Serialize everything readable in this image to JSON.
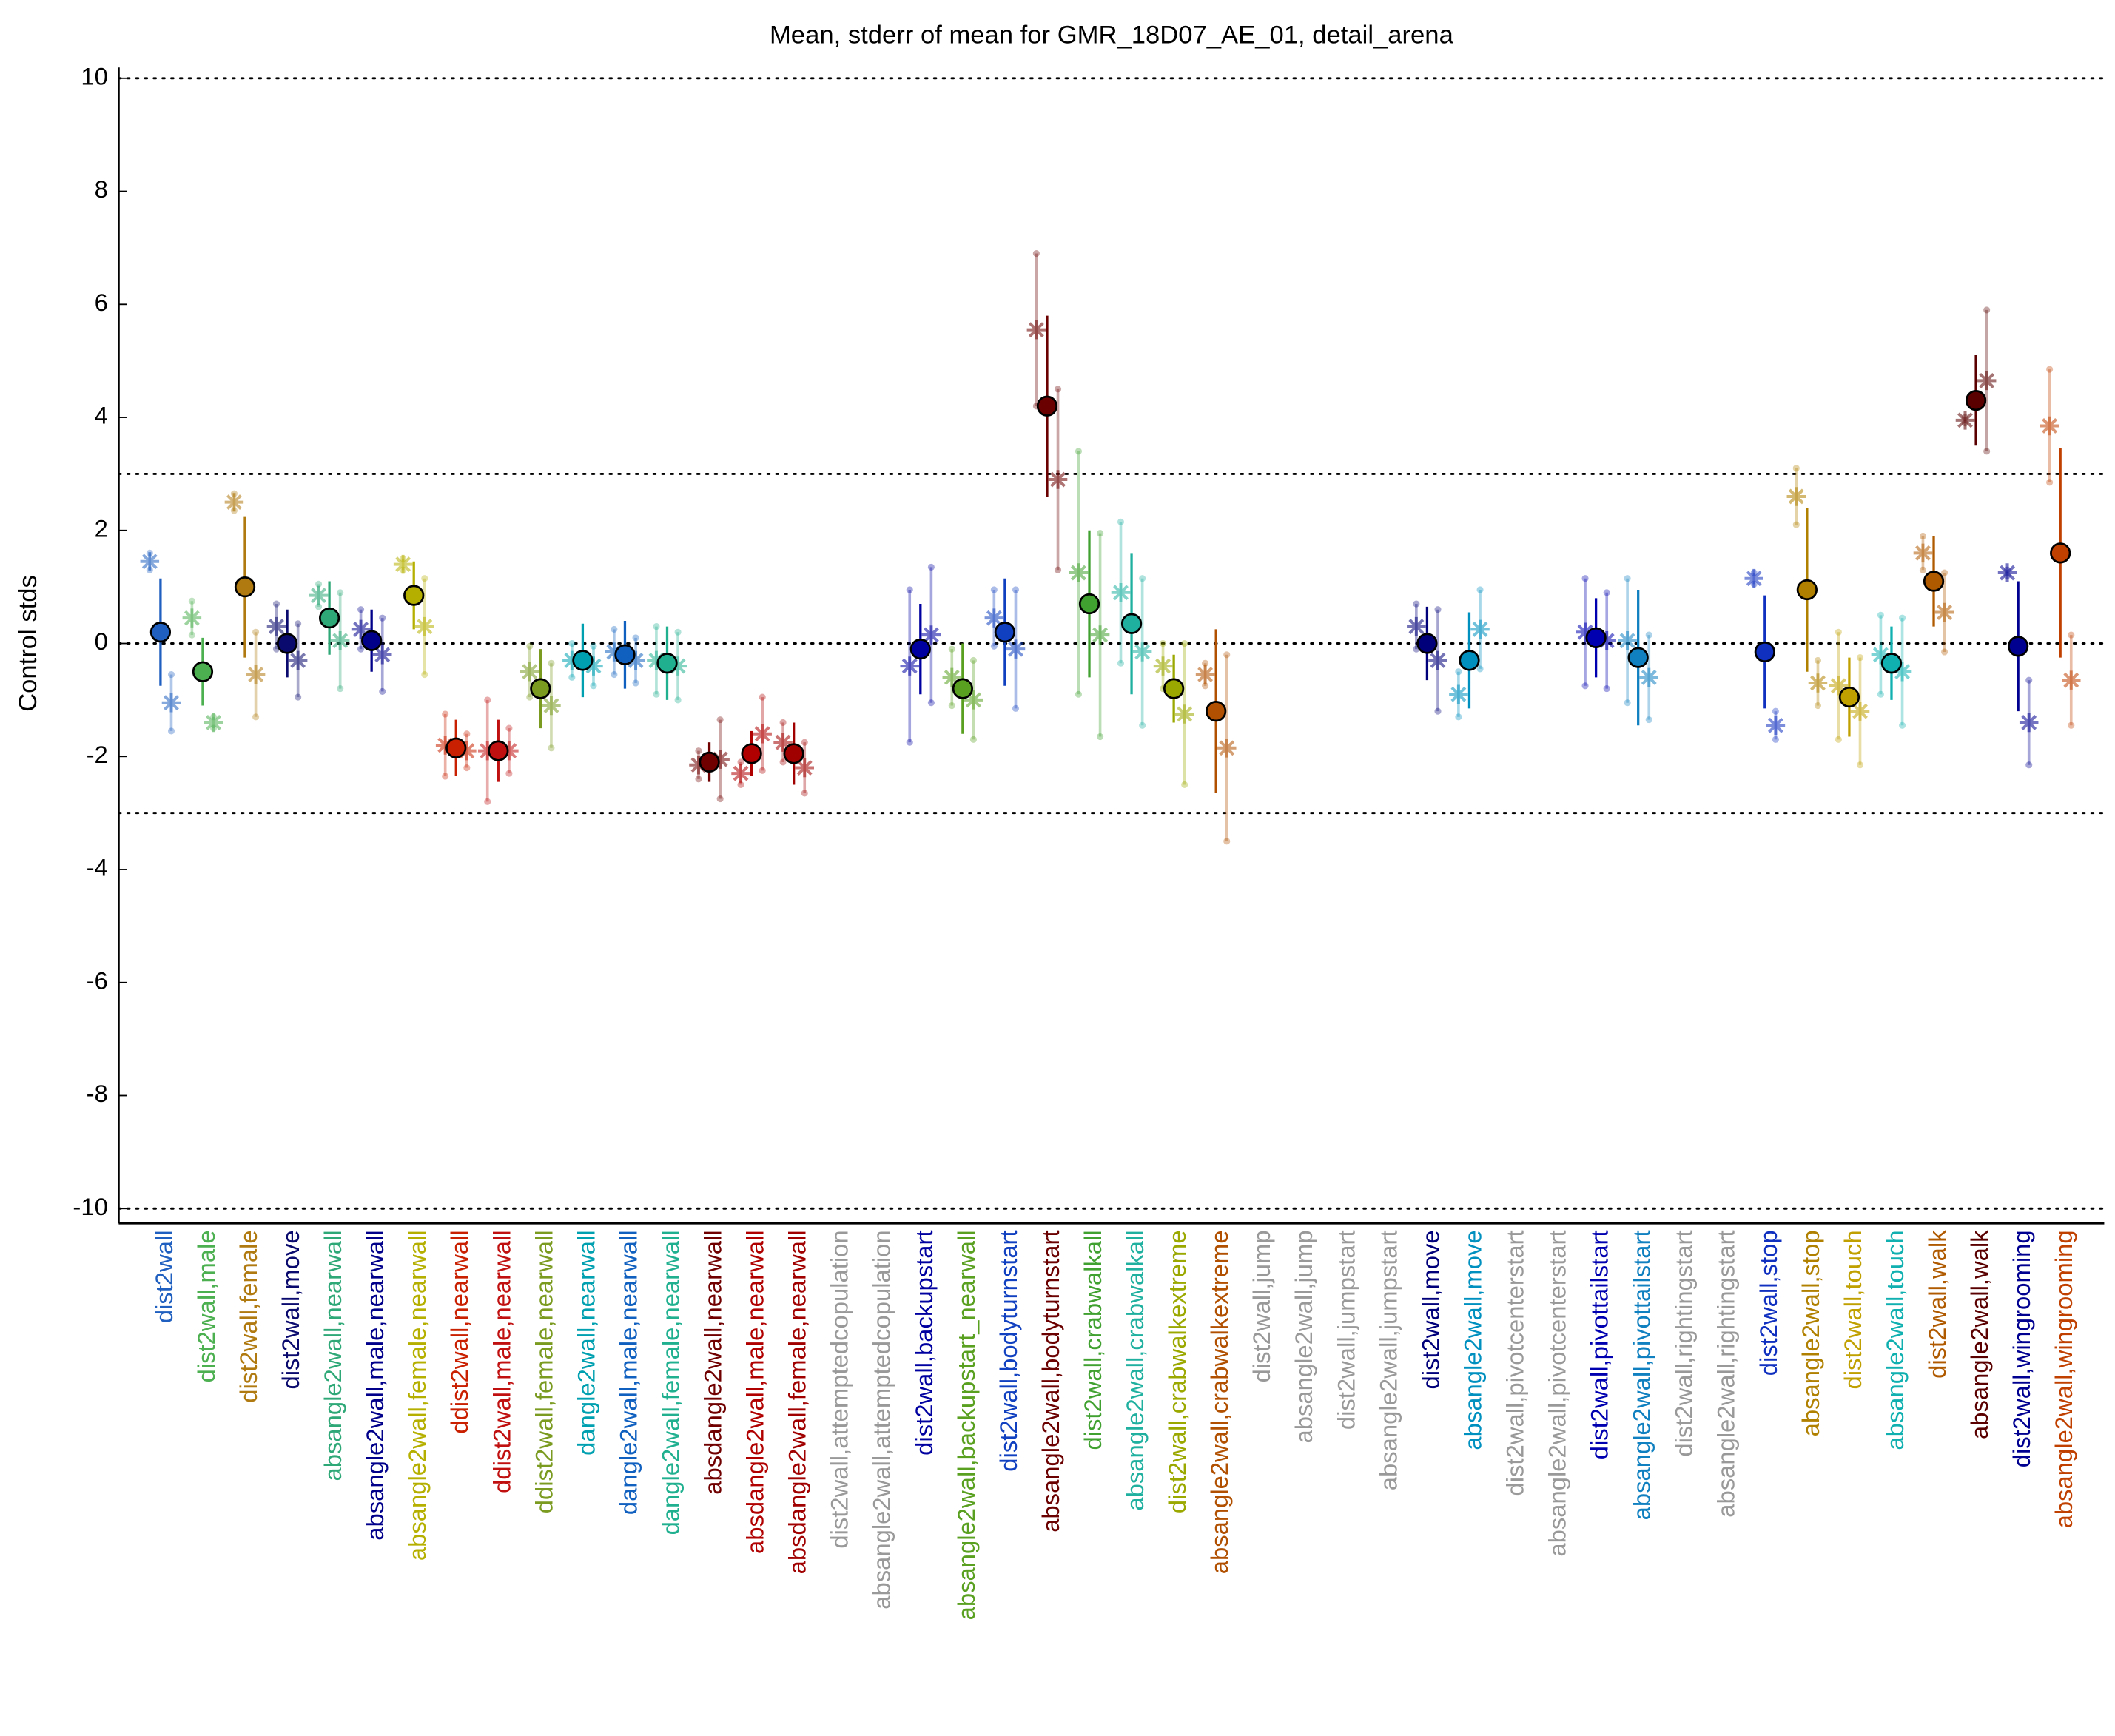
{
  "chart_data": {
    "type": "errorbar",
    "title": "Mean, stderr of mean for GMR_18D07_AE_01, detail_arena",
    "ylabel": "Control stds",
    "ylim": [
      -10,
      10
    ],
    "yticks": [
      -10,
      -8,
      -6,
      -4,
      -2,
      0,
      2,
      4,
      6,
      8,
      10
    ],
    "reference_lines": [
      -10,
      -3,
      0,
      3,
      10
    ],
    "categories": [
      "dist2wall",
      "dist2wall,male",
      "dist2wall,female",
      "dist2wall,move",
      "absangle2wall,nearwall",
      "absangle2wall,male,nearwall",
      "absangle2wall,female,nearwall",
      "ddist2wall,nearwall",
      "ddist2wall,male,nearwall",
      "ddist2wall,female,nearwall",
      "dangle2wall,nearwall",
      "dangle2wall,male,nearwall",
      "dangle2wall,female,nearwall",
      "absdangle2wall,nearwall",
      "absdangle2wall,male,nearwall",
      "absdangle2wall,female,nearwall",
      "dist2wall,attemptedcopulation",
      "absangle2wall,attemptedcopulation",
      "dist2wall,backupstart",
      "absangle2wall,backupstart_nearwall",
      "dist2wall,bodyturnstart",
      "absangle2wall,bodyturnstart",
      "dist2wall,crabwalkall",
      "absangle2wall,crabwalkall",
      "dist2wall,crabwalkextreme",
      "absangle2wall,crabwalkextreme",
      "dist2wall,jump",
      "absangle2wall,jump",
      "dist2wall,jumpstart",
      "absangle2wall,jumpstart",
      "dist2wall,move",
      "absangle2wall,move",
      "dist2wall,pivotcenterstart",
      "absangle2wall,pivotcenterstart",
      "dist2wall,pivottailstart",
      "absangle2wall,pivottailstart",
      "dist2wall,rightingstart",
      "absangle2wall,rightingstart",
      "dist2wall,stop",
      "absangle2wall,stop",
      "dist2wall,touch",
      "absangle2wall,touch",
      "dist2wall,walk",
      "absangle2wall,walk",
      "dist2wall,wingrooming",
      "absangle2wall,wingrooming"
    ],
    "colors": [
      "#1f5fbf",
      "#4caf50",
      "#b07a10",
      "#0a0a6e",
      "#2fa878",
      "#00008b",
      "#b5b000",
      "#c82000",
      "#c01010",
      "#7a9a20",
      "#00a0b0",
      "#1060c0",
      "#20b090",
      "#700000",
      "#b00000",
      "#a00000",
      "#999999",
      "#999999",
      "#0000a0",
      "#5aa020",
      "#1040c0",
      "#6b0000",
      "#40a030",
      "#20b0a0",
      "#9aa800",
      "#b05000",
      "#999999",
      "#999999",
      "#999999",
      "#999999",
      "#00007a",
      "#0090c0",
      "#999999",
      "#999999",
      "#0000b0",
      "#1080c0",
      "#999999",
      "#999999",
      "#1030c0",
      "#b08000",
      "#c0a000",
      "#10b0b0",
      "#b05a00",
      "#5a0000",
      "#000090",
      "#c04000"
    ],
    "means": [
      0.2,
      -0.5,
      1.0,
      0.0,
      0.45,
      0.05,
      0.85,
      -1.85,
      -1.9,
      -0.8,
      -0.3,
      -0.2,
      -0.35,
      -2.1,
      -1.95,
      -1.95,
      null,
      null,
      -0.1,
      -0.8,
      0.2,
      4.2,
      0.7,
      0.35,
      -0.8,
      -1.2,
      null,
      null,
      null,
      null,
      0.0,
      -0.3,
      null,
      null,
      0.1,
      -0.25,
      null,
      null,
      -0.15,
      0.95,
      -0.95,
      -0.35,
      1.1,
      4.3,
      -0.05,
      1.6
    ],
    "mean_errors": [
      0.95,
      0.6,
      1.25,
      0.6,
      0.65,
      0.55,
      0.6,
      0.5,
      0.55,
      0.7,
      0.65,
      0.6,
      0.65,
      0.35,
      0.4,
      0.55,
      null,
      null,
      0.8,
      0.8,
      0.95,
      1.6,
      1.3,
      1.25,
      0.6,
      1.45,
      null,
      null,
      null,
      null,
      0.65,
      0.85,
      null,
      null,
      0.7,
      1.2,
      null,
      null,
      1.0,
      1.45,
      0.7,
      0.65,
      0.8,
      0.8,
      1.15,
      1.85
    ],
    "male": [
      1.45,
      0.45,
      2.5,
      0.3,
      0.85,
      0.25,
      1.4,
      -1.8,
      -1.9,
      -0.5,
      -0.3,
      -0.15,
      -0.3,
      -2.15,
      -2.3,
      -1.75,
      null,
      null,
      -0.4,
      -0.6,
      0.45,
      5.55,
      1.25,
      0.9,
      -0.4,
      -0.55,
      null,
      null,
      null,
      null,
      0.3,
      -0.9,
      null,
      null,
      0.2,
      0.05,
      null,
      null,
      1.15,
      2.6,
      -0.75,
      -0.2,
      1.6,
      3.95,
      1.25,
      3.85
    ],
    "male_errors": [
      0.15,
      0.3,
      0.15,
      0.4,
      0.2,
      0.35,
      0.1,
      0.55,
      0.9,
      0.45,
      0.3,
      0.4,
      0.6,
      0.25,
      0.2,
      0.35,
      null,
      null,
      1.35,
      0.5,
      0.5,
      1.35,
      2.15,
      1.25,
      0.4,
      0.2,
      null,
      null,
      null,
      null,
      0.4,
      0.4,
      null,
      null,
      0.95,
      1.1,
      null,
      null,
      0.1,
      0.5,
      0.95,
      0.7,
      0.3,
      0.05,
      0.05,
      1.0
    ],
    "female": [
      -1.05,
      -1.4,
      -0.55,
      -0.3,
      0.05,
      -0.2,
      0.3,
      -1.9,
      -1.9,
      -1.1,
      -0.4,
      -0.3,
      -0.4,
      -2.05,
      -1.6,
      -2.2,
      null,
      null,
      0.15,
      -1.0,
      -0.1,
      2.9,
      0.15,
      -0.15,
      -1.25,
      -1.85,
      null,
      null,
      null,
      null,
      -0.3,
      0.25,
      null,
      null,
      0.05,
      -0.6,
      null,
      null,
      -1.45,
      -0.7,
      -1.2,
      -0.5,
      0.55,
      4.65,
      -1.4,
      -0.65
    ],
    "female_errors": [
      0.5,
      0.1,
      0.75,
      0.65,
      0.85,
      0.65,
      0.85,
      0.3,
      0.4,
      0.75,
      0.35,
      0.4,
      0.6,
      0.7,
      0.65,
      0.45,
      null,
      null,
      1.2,
      0.7,
      1.05,
      1.6,
      1.8,
      1.3,
      1.25,
      1.65,
      null,
      null,
      null,
      null,
      0.9,
      0.7,
      null,
      null,
      0.85,
      0.75,
      null,
      null,
      0.25,
      0.4,
      0.95,
      0.95,
      0.7,
      1.25,
      0.75,
      0.8
    ]
  }
}
